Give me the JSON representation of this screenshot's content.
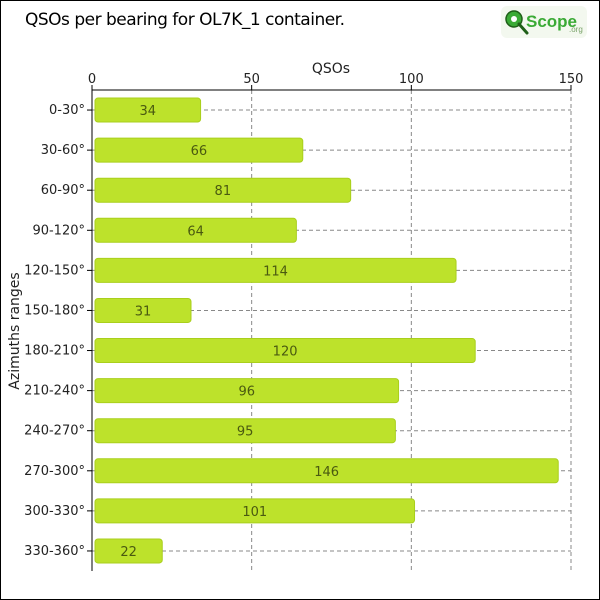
{
  "title": "QSOs per bearing for OL7K_1 container.",
  "logo": {
    "text_main": "Scope",
    "text_sub": ".org",
    "icon": "magnifier-q-icon",
    "colors": {
      "green": "#3aaa35",
      "dark": "#2a6e1e"
    }
  },
  "chart_data": {
    "type": "bar",
    "orientation": "horizontal",
    "xlabel": "QSOs",
    "ylabel": "Azimuths ranges",
    "xlim": [
      0,
      150
    ],
    "xticks": [
      0,
      50,
      100,
      150
    ],
    "grid": true,
    "categories": [
      "0-30°",
      "30-60°",
      "60-90°",
      "90-120°",
      "120-150°",
      "150-180°",
      "180-210°",
      "210-240°",
      "240-270°",
      "270-300°",
      "300-330°",
      "330-360°"
    ],
    "values": [
      34,
      66,
      81,
      64,
      114,
      31,
      120,
      96,
      95,
      146,
      101,
      22
    ],
    "bar_color": "#bde22b",
    "bar_edge_color": "#a9cf1c"
  }
}
